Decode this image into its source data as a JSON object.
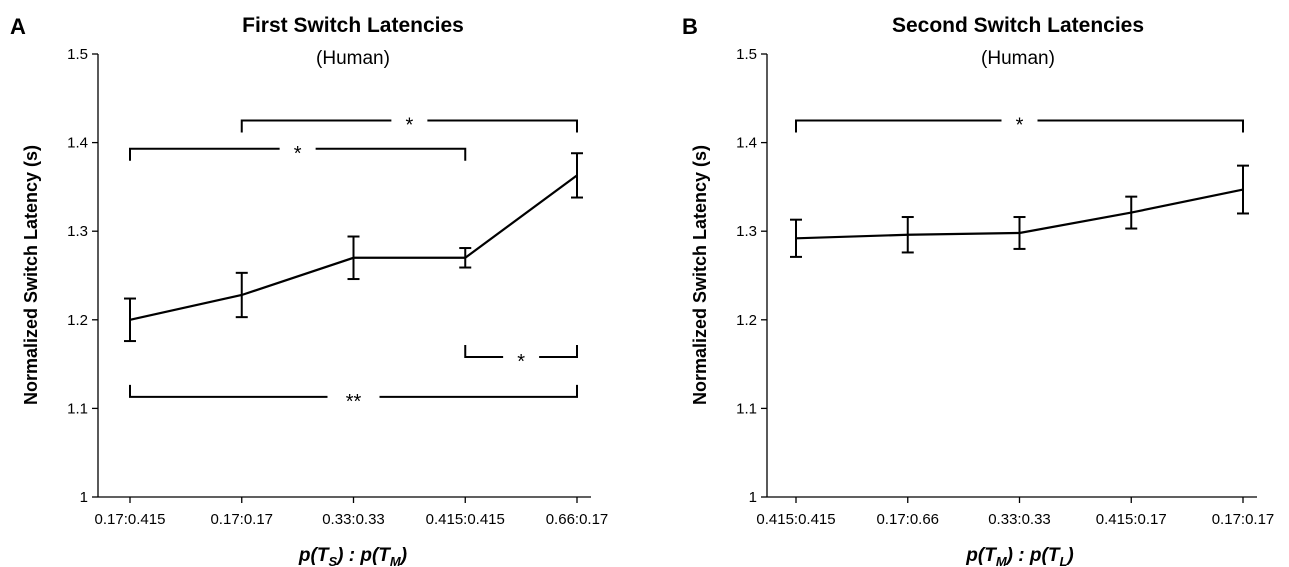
{
  "chart_data": [
    {
      "type": "line",
      "panel": "A",
      "title": "First Switch Latencies",
      "subtitle": "(Human)",
      "ylabel": "Normalized Switch Latency (s)",
      "xlabel": {
        "p1": "p(",
        "t1": "T",
        "s1": "S",
        "mid": ") : p(",
        "t2": "T",
        "s2": "M",
        "end": ")"
      },
      "ylim": [
        1,
        1.5
      ],
      "yticks": [
        1,
        1.1,
        1.2,
        1.3,
        1.4,
        1.5
      ],
      "ytick_labels": [
        "1",
        "1.1",
        "1.2",
        "1.3",
        "1.4",
        "1.5"
      ],
      "categories": [
        "0.17:0.415",
        "0.17:0.17",
        "0.33:0.33",
        "0.415:0.415",
        "0.66:0.17"
      ],
      "values": [
        1.2,
        1.228,
        1.27,
        1.27,
        1.363
      ],
      "errors": [
        0.024,
        0.025,
        0.024,
        0.011,
        0.025
      ],
      "brackets": [
        {
          "from": 1,
          "to": 4,
          "y": 1.425,
          "label": "*",
          "ticks": "down"
        },
        {
          "from": 0,
          "to": 3,
          "y": 1.393,
          "label": "*",
          "ticks": "down"
        },
        {
          "from": 3,
          "to": 4,
          "y": 1.158,
          "label": "*",
          "ticks": "up"
        },
        {
          "from": 0,
          "to": 4,
          "y": 1.113,
          "label": "**",
          "ticks": "up"
        }
      ]
    },
    {
      "type": "line",
      "panel": "B",
      "title": "Second Switch Latencies",
      "subtitle": "(Human)",
      "ylabel": "Normalized Switch Latency (s)",
      "xlabel": {
        "p1": "p(",
        "t1": "T",
        "s1": "M",
        "mid": ") : p(",
        "t2": "T",
        "s2": "L",
        "end": ")"
      },
      "ylim": [
        1,
        1.5
      ],
      "yticks": [
        1,
        1.1,
        1.2,
        1.3,
        1.4,
        1.5
      ],
      "ytick_labels": [
        "1",
        "1.1",
        "1.2",
        "1.3",
        "1.4",
        "1.5"
      ],
      "categories": [
        "0.415:0.415",
        "0.17:0.66",
        "0.33:0.33",
        "0.415:0.17",
        "0.17:0.17"
      ],
      "values": [
        1.292,
        1.296,
        1.298,
        1.321,
        1.347
      ],
      "errors": [
        0.021,
        0.02,
        0.018,
        0.018,
        0.027
      ],
      "brackets": [
        {
          "from": 0,
          "to": 4,
          "y": 1.425,
          "label": "*",
          "ticks": "down"
        }
      ]
    }
  ]
}
